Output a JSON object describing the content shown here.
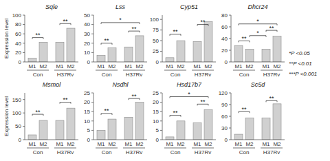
{
  "chart_data": [
    {
      "type": "bar",
      "title": "Sqle",
      "ylabel": "Expression level",
      "categories": [
        "M1",
        "M2",
        "M1",
        "M2"
      ],
      "groups": [
        "Con",
        "H37Rv"
      ],
      "values": [
        8,
        42,
        42,
        72
      ],
      "color": "#d0d0d0",
      "ylim": [
        0,
        100
      ],
      "yticks": [
        0,
        20,
        40,
        60,
        80,
        100
      ],
      "annotations": [
        {
          "from": 0,
          "to": 1,
          "y": 52,
          "label": "**"
        },
        {
          "from": 2,
          "to": 3,
          "y": 82,
          "label": "**"
        }
      ]
    },
    {
      "type": "bar",
      "title": "Lss",
      "categories": [
        "M1",
        "M2",
        "M1",
        "M2"
      ],
      "groups": [
        "Con",
        "H37Rv"
      ],
      "values": [
        7,
        15,
        16,
        28
      ],
      "color": "#d0d0d0",
      "ylim": [
        0,
        50
      ],
      "yticks": [
        0,
        10,
        20,
        30,
        40,
        50
      ],
      "annotations": [
        {
          "from": 0,
          "to": 1,
          "y": 20,
          "label": "**"
        },
        {
          "from": 2,
          "to": 3,
          "y": 33,
          "label": "**"
        },
        {
          "from": 0,
          "to": 3,
          "y": 42,
          "label": "*"
        }
      ]
    },
    {
      "type": "bar",
      "title": "Cyp51",
      "categories": [
        "M1",
        "M2",
        "M1",
        "M2"
      ],
      "groups": [
        "Con",
        "H37Rv"
      ],
      "values": [
        10,
        50,
        48,
        95
      ],
      "color": "#d0d0d0",
      "ylim": [
        0,
        110
      ],
      "yticks": [
        0,
        25,
        50,
        75,
        100
      ],
      "annotations": [
        {
          "from": 0,
          "to": 1,
          "y": 65,
          "label": "**"
        },
        {
          "from": 2,
          "to": 3,
          "y": 88,
          "label": "**"
        }
      ]
    },
    {
      "type": "bar",
      "title": "Dhcr24",
      "categories": [
        "M1",
        "M2",
        "M1",
        "M2"
      ],
      "groups": [
        "Con",
        "H37Rv"
      ],
      "values": [
        28,
        22,
        22,
        44
      ],
      "color": "#d0d0d0",
      "ylim": [
        0,
        80
      ],
      "yticks": [
        0,
        20,
        40,
        60,
        80
      ],
      "annotations": [
        {
          "from": 0,
          "to": 1,
          "y": 36,
          "label": "**"
        },
        {
          "from": 2,
          "to": 3,
          "y": 54,
          "label": "**"
        },
        {
          "from": 1,
          "to": 2,
          "y": 45,
          "label": "*"
        },
        {
          "from": 0,
          "to": 3,
          "y": 65,
          "label": "*"
        }
      ]
    },
    {
      "type": "bar",
      "title": "Msmol",
      "ylabel": "Expression level",
      "categories": [
        "M1",
        "M2",
        "M1",
        "M2"
      ],
      "groups": [
        "Con",
        "H37Rv"
      ],
      "values": [
        18,
        72,
        72,
        118
      ],
      "color": "#d0d0d0",
      "ylim": [
        0,
        175
      ],
      "yticks": [
        0,
        50,
        100,
        150
      ],
      "annotations": [
        {
          "from": 0,
          "to": 1,
          "y": 95,
          "label": "**"
        },
        {
          "from": 2,
          "to": 3,
          "y": 140,
          "label": "**"
        }
      ]
    },
    {
      "type": "bar",
      "title": "Nsdhl",
      "categories": [
        "M1",
        "M2",
        "M1",
        "M2"
      ],
      "groups": [
        "Con",
        "H37Rv"
      ],
      "values": [
        5,
        11,
        12,
        20
      ],
      "color": "#d0d0d0",
      "ylim": [
        0,
        25
      ],
      "yticks": [
        0,
        5,
        10,
        15,
        20,
        25
      ],
      "annotations": [
        {
          "from": 0,
          "to": 1,
          "y": 14,
          "label": "**"
        },
        {
          "from": 2,
          "to": 3,
          "y": 22,
          "label": "**"
        }
      ]
    },
    {
      "type": "bar",
      "title": "Hsd17b7",
      "categories": [
        "M1",
        "M2",
        "M1",
        "M2"
      ],
      "groups": [
        "Con",
        "H37Rv"
      ],
      "values": [
        1.5,
        10,
        9,
        16
      ],
      "color": "#d0d0d0",
      "ylim": [
        0,
        25
      ],
      "yticks": [
        0,
        5,
        10,
        15,
        20,
        25
      ],
      "annotations": [
        {
          "from": 0,
          "to": 1,
          "y": 13,
          "label": "**"
        },
        {
          "from": 2,
          "to": 3,
          "y": 19,
          "label": "**"
        },
        {
          "from": 0,
          "to": 3,
          "y": 23,
          "label": "*"
        }
      ]
    },
    {
      "type": "bar",
      "title": "Sc5d",
      "categories": [
        "M1",
        "M2",
        "M1",
        "M2"
      ],
      "groups": [
        "Con",
        "H37Rv"
      ],
      "values": [
        14,
        56,
        56,
        92
      ],
      "color": "#d0d0d0",
      "ylim": [
        0,
        120
      ],
      "yticks": [
        0,
        30,
        60,
        90,
        120
      ],
      "annotations": [
        {
          "from": 0,
          "to": 1,
          "y": 72,
          "label": "**"
        },
        {
          "from": 2,
          "to": 3,
          "y": 100,
          "label": "**"
        }
      ]
    }
  ],
  "annotations": [
    "*P <0.05",
    "**P <0.01",
    "***P <0.001"
  ]
}
